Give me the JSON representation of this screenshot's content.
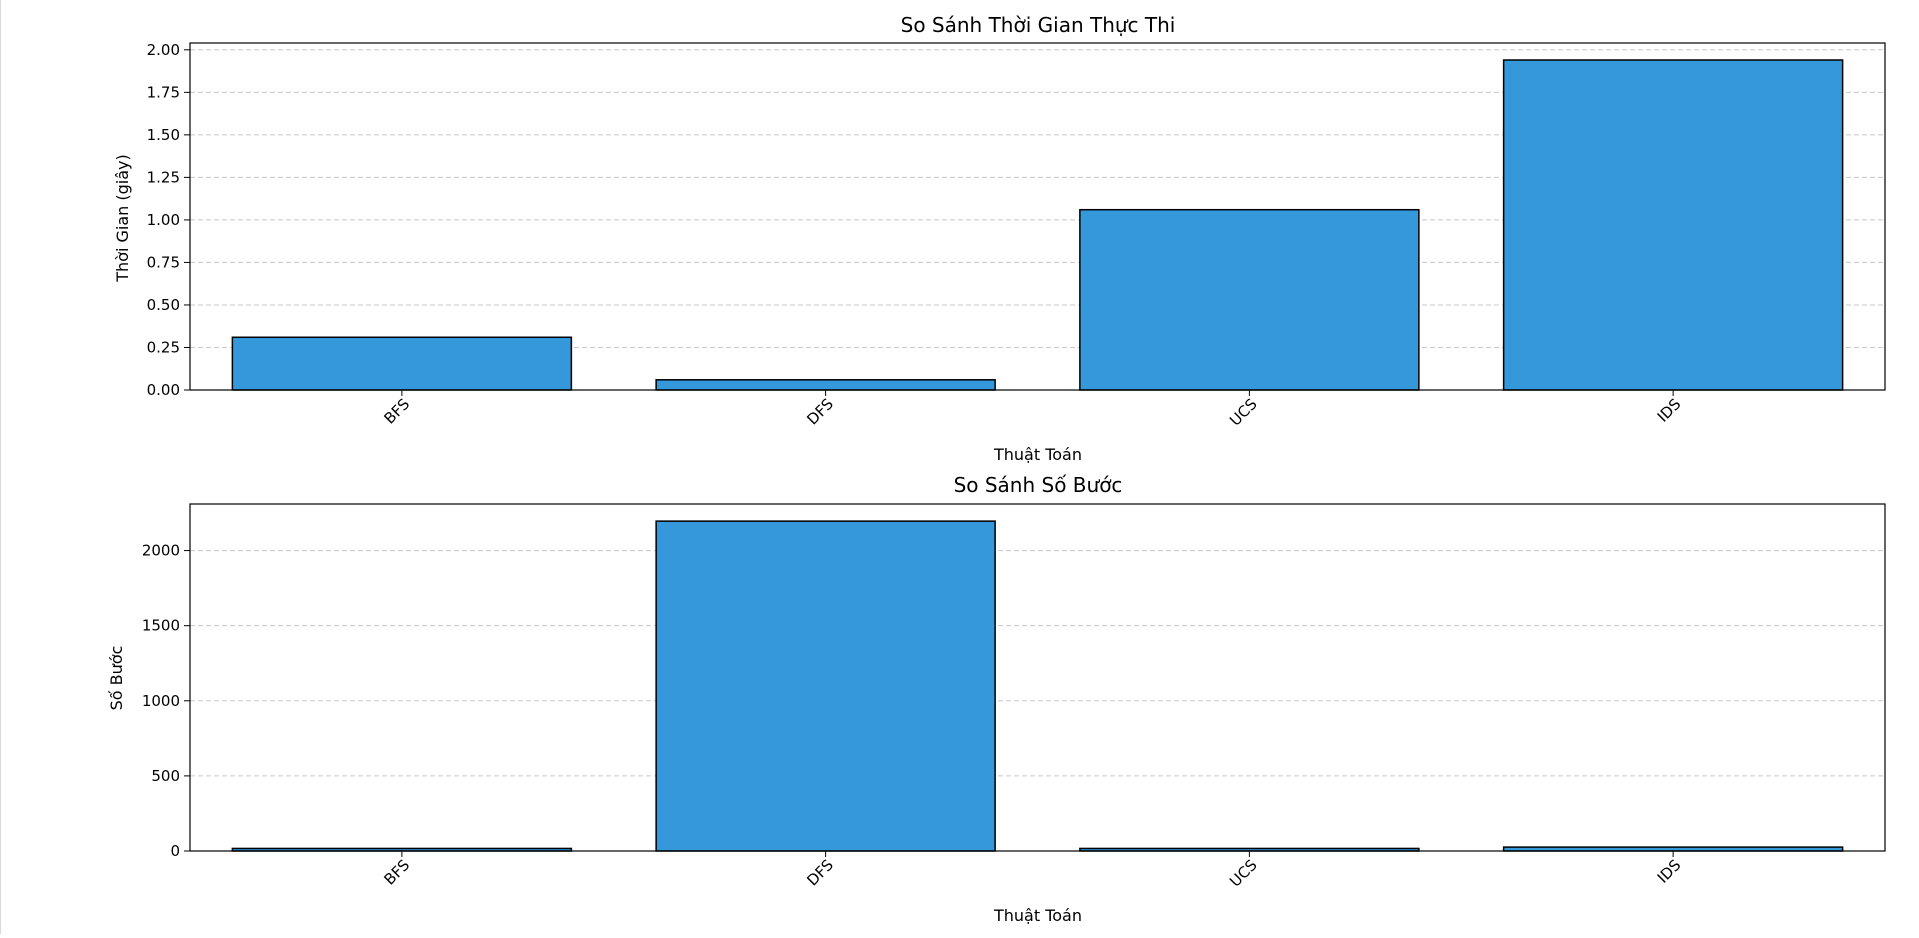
{
  "chart_data": [
    {
      "type": "bar",
      "title": "So Sánh Thời Gian Thực Thi",
      "xlabel": "Thuật Toán",
      "ylabel": "Thời Gian (giây)",
      "categories": [
        "BFS",
        "DFS",
        "UCS",
        "IDS"
      ],
      "values": [
        0.31,
        0.06,
        1.06,
        1.94
      ],
      "ylim": [
        0,
        2.04
      ],
      "yticks": [
        0,
        0.25,
        0.5,
        0.75,
        1.0,
        1.25,
        1.5,
        1.75,
        2.0
      ],
      "ytick_labels": [
        "0.00",
        "0.25",
        "0.50",
        "0.75",
        "1.00",
        "1.25",
        "1.50",
        "1.75",
        "2.00"
      ],
      "grid": "y-dashed",
      "bar_color": "#3498db",
      "edge_color": "#000000"
    },
    {
      "type": "bar",
      "title": "So Sánh Số Bước",
      "xlabel": "Thuật Toán",
      "ylabel": "Số Bước",
      "categories": [
        "BFS",
        "DFS",
        "UCS",
        "IDS"
      ],
      "values": [
        17,
        2196,
        17,
        26
      ],
      "ylim": [
        0,
        2310
      ],
      "yticks": [
        0,
        500,
        1000,
        1500,
        2000
      ],
      "ytick_labels": [
        "0",
        "500",
        "1000",
        "1500",
        "2000"
      ],
      "grid": "y-dashed",
      "bar_color": "#3498db",
      "edge_color": "#000000"
    }
  ]
}
